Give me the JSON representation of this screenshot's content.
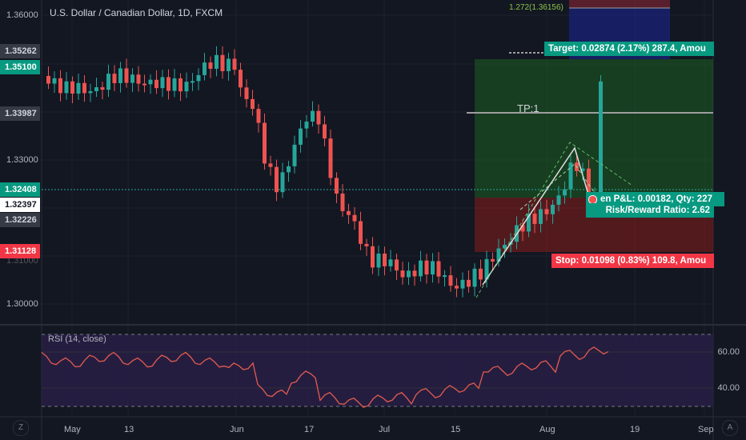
{
  "header": {
    "title": "U.S. Dollar / Canadian Dollar, 1D, FXCM",
    "fib_label": "1.272(1.36156)"
  },
  "price_axis": {
    "ticks": [
      "1.36000",
      "1.33000",
      "1.30000"
    ],
    "badges": [
      {
        "text": "1.35262",
        "color": "#363a45"
      },
      {
        "text": "1.35100",
        "color": "#089981"
      },
      {
        "text": "1.33987",
        "color": "#363a45"
      },
      {
        "text": "1.32408",
        "color": "#089981"
      },
      {
        "text": "1.32397",
        "color": "#ffffff"
      },
      {
        "text": "1.32226",
        "color": "#363a45"
      },
      {
        "text": "1.31128",
        "color": "#f23645"
      }
    ],
    "partial_tick": "1.31000"
  },
  "position": {
    "target": "Target: 0.02874 (2.17%) 287.4, Amou",
    "pnl": "en P&L: 0.00182, Qty: 227",
    "rr": "Risk/Reward Ratio: 2.62",
    "stop": "Stop: 0.01098 (0.83%) 109.8, Amou",
    "tp": "TP:1",
    "profit_color": "#1b5e20",
    "loss_color": "#7f1d1d"
  },
  "rsi": {
    "title": "RSI (14, close)",
    "ticks": [
      "60.00",
      "40.00"
    ]
  },
  "time_axis": {
    "labels": [
      "May",
      "13",
      "Jun",
      "17",
      "Jul",
      "15",
      "Aug",
      "19",
      "Sep"
    ]
  },
  "corners": {
    "left_bottom": "Z",
    "right_bottom": "A"
  },
  "colors": {
    "bull": "#26a69a",
    "bear": "#ef5350",
    "background": "#131722",
    "rsi_line": "#e45b4e"
  }
}
